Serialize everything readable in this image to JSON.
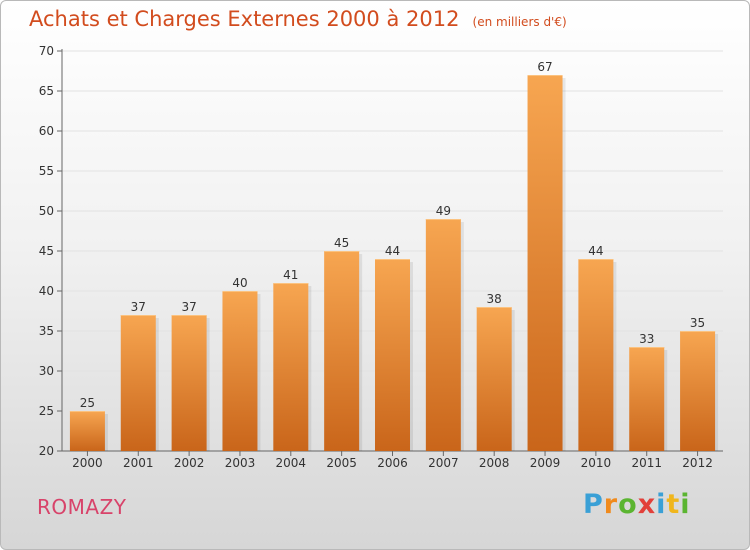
{
  "chart_data": {
    "type": "bar",
    "title": "Achats et Charges Externes 2000 à 2012",
    "subtitle": "(en milliers d'€)",
    "categories": [
      "2000",
      "2001",
      "2002",
      "2003",
      "2004",
      "2005",
      "2006",
      "2007",
      "2008",
      "2009",
      "2010",
      "2011",
      "2012"
    ],
    "values": [
      25,
      37,
      37,
      40,
      41,
      45,
      44,
      49,
      38,
      67,
      44,
      33,
      35
    ],
    "xlabel": "",
    "ylabel": "",
    "ylim": [
      20,
      70
    ],
    "yticks": [
      20,
      25,
      30,
      35,
      40,
      45,
      50,
      55,
      60,
      65,
      70
    ],
    "grid": "horizontal",
    "data_labels": true,
    "colors": {
      "bar_top": "#f7a651",
      "bar_bottom": "#c9651a",
      "title": "#d24c1e"
    }
  },
  "footer": {
    "commune": "ROMAZY",
    "commune_color": "#d8436a",
    "brand": "Proxiti"
  }
}
